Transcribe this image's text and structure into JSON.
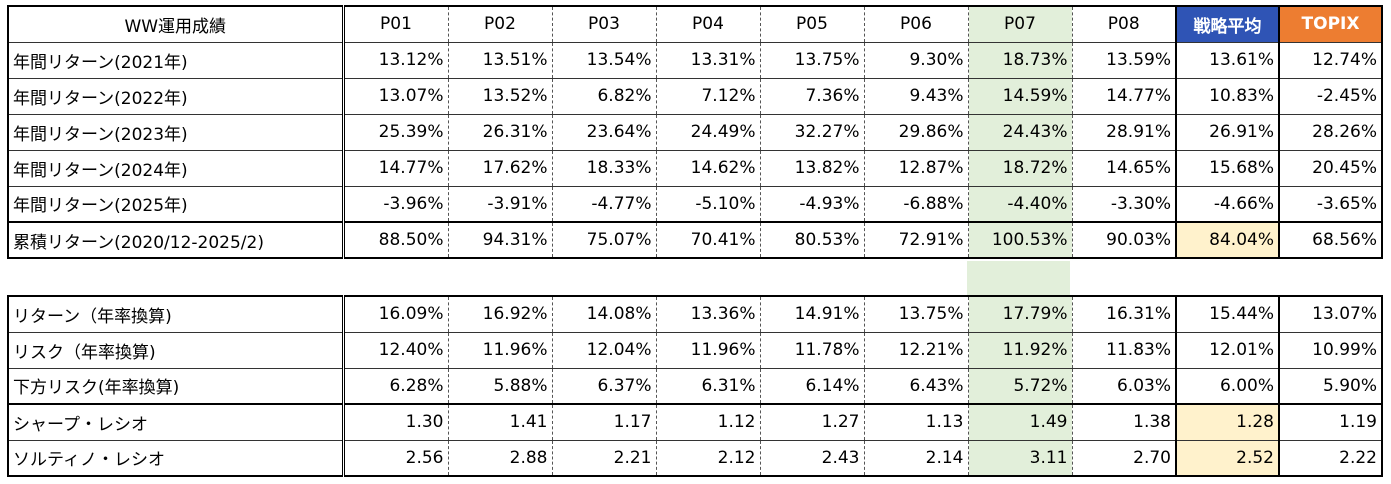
{
  "title": "WW運用成績",
  "columns": [
    "P01",
    "P02",
    "P03",
    "P04",
    "P05",
    "P06",
    "P07",
    "P08",
    "戦略平均",
    "TOPIX"
  ],
  "colors": {
    "highlight_column": "#e2efda",
    "strategy_header": "#2f54b5",
    "topix_header": "#ed7d31",
    "highlight_cell": "#fff2cc"
  },
  "table1": [
    {
      "label": "年間リターン(2021年)",
      "values": [
        "13.12%",
        "13.51%",
        "13.54%",
        "13.31%",
        "13.75%",
        "9.30%",
        "18.73%",
        "13.59%",
        "13.61%",
        "12.74%"
      ]
    },
    {
      "label": "年間リターン(2022年)",
      "values": [
        "13.07%",
        "13.52%",
        "6.82%",
        "7.12%",
        "7.36%",
        "9.43%",
        "14.59%",
        "14.77%",
        "10.83%",
        "-2.45%"
      ]
    },
    {
      "label": "年間リターン(2023年)",
      "values": [
        "25.39%",
        "26.31%",
        "23.64%",
        "24.49%",
        "32.27%",
        "29.86%",
        "24.43%",
        "28.91%",
        "26.91%",
        "28.26%"
      ]
    },
    {
      "label": "年間リターン(2024年)",
      "values": [
        "14.77%",
        "17.62%",
        "18.33%",
        "14.62%",
        "13.82%",
        "12.87%",
        "18.72%",
        "14.65%",
        "15.68%",
        "20.45%"
      ]
    },
    {
      "label": "年間リターン(2025年)",
      "values": [
        "-3.96%",
        "-3.91%",
        "-4.77%",
        "-5.10%",
        "-4.93%",
        "-6.88%",
        "-4.40%",
        "-3.30%",
        "-4.66%",
        "-3.65%"
      ]
    },
    {
      "label": "累積リターン(2020/12-2025/2)",
      "values": [
        "88.50%",
        "94.31%",
        "75.07%",
        "70.41%",
        "80.53%",
        "72.91%",
        "100.53%",
        "90.03%",
        "84.04%",
        "68.56%"
      ]
    }
  ],
  "table2": [
    {
      "label": "リターン（年率換算)",
      "values": [
        "16.09%",
        "16.92%",
        "14.08%",
        "13.36%",
        "14.91%",
        "13.75%",
        "17.79%",
        "16.31%",
        "15.44%",
        "13.07%"
      ]
    },
    {
      "label": "リスク（年率換算)",
      "values": [
        "12.40%",
        "11.96%",
        "12.04%",
        "11.96%",
        "11.78%",
        "12.21%",
        "11.92%",
        "11.83%",
        "12.01%",
        "10.99%"
      ]
    },
    {
      "label": "下方リスク(年率換算)",
      "values": [
        "6.28%",
        "5.88%",
        "6.37%",
        "6.31%",
        "6.14%",
        "6.43%",
        "5.72%",
        "6.03%",
        "6.00%",
        "5.90%"
      ]
    },
    {
      "label": "シャープ・レシオ",
      "values": [
        "1.30",
        "1.41",
        "1.17",
        "1.12",
        "1.27",
        "1.13",
        "1.49",
        "1.38",
        "1.28",
        "1.19"
      ]
    },
    {
      "label": "ソルティノ・レシオ",
      "values": [
        "2.56",
        "2.88",
        "2.21",
        "2.12",
        "2.43",
        "2.14",
        "3.11",
        "2.70",
        "2.52",
        "2.22"
      ]
    }
  ]
}
